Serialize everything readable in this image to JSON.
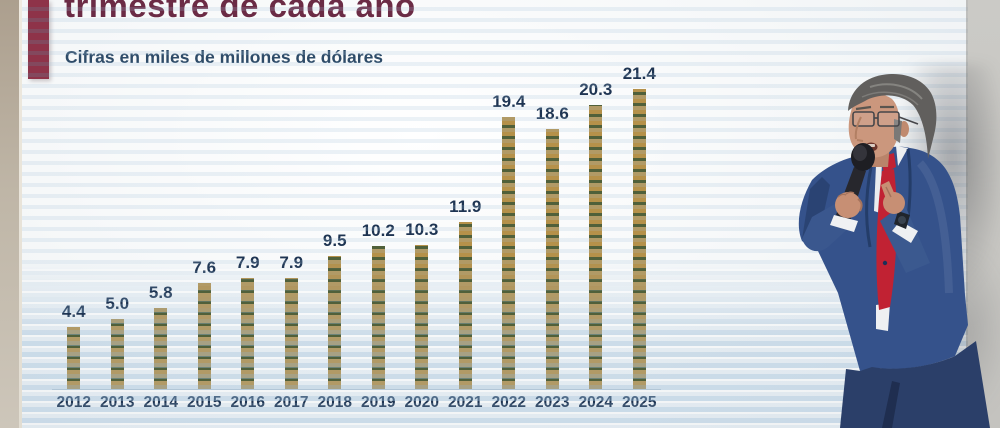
{
  "slide": {
    "title": "trimestre de cada año",
    "subtitle": "Cifras en miles de millones de dólares"
  },
  "chart_data": {
    "type": "bar",
    "title": "trimestre de cada año",
    "subtitle": "Cifras en miles de millones de dólares",
    "categories": [
      "2012",
      "2013",
      "2014",
      "2015",
      "2016",
      "2017",
      "2018",
      "2019",
      "2020",
      "2021",
      "2022",
      "2023",
      "2024",
      "2025"
    ],
    "values": [
      4.4,
      5.0,
      5.8,
      7.6,
      7.9,
      7.9,
      9.5,
      10.2,
      10.3,
      11.9,
      19.4,
      18.6,
      20.3,
      21.4
    ],
    "value_labels": [
      "4.4",
      "5.0",
      "5.8",
      "7.6",
      "7.9",
      "7.9",
      "9.5",
      "10.2",
      "10.3",
      "11.9",
      "19.4",
      "18.6",
      "20.3",
      "21.4"
    ],
    "xlabel": "",
    "ylabel": "",
    "ylim": [
      0,
      23
    ],
    "grid": false,
    "legend": false,
    "colors": {
      "bar_gold": "#b5914a",
      "bar_stripe_green": "#50603a",
      "value_label_navy": "#1e3452",
      "axis_label_navy": "#1e3452",
      "title_maroon": "#6b2b45",
      "subtitle_navy": "#2e4b68",
      "accent_block_maroon": "#8e3349"
    }
  },
  "scene": {
    "presenter": "man-in-blue-suit-with-red-tie-holding-microphone"
  }
}
